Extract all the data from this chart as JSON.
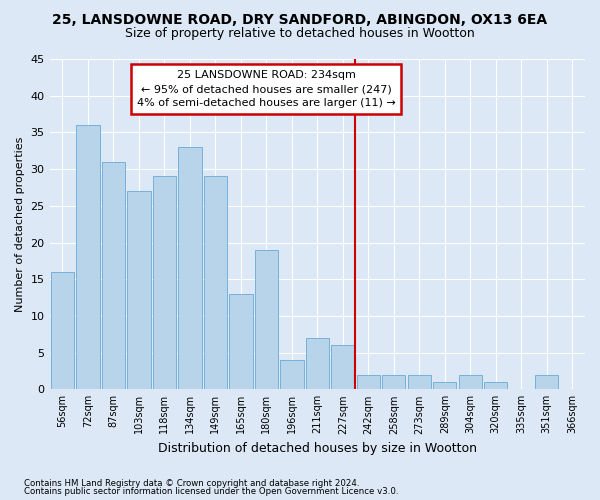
{
  "title1": "25, LANSDOWNE ROAD, DRY SANDFORD, ABINGDON, OX13 6EA",
  "title2": "Size of property relative to detached houses in Wootton",
  "xlabel": "Distribution of detached houses by size in Wootton",
  "ylabel": "Number of detached properties",
  "footer1": "Contains HM Land Registry data © Crown copyright and database right 2024.",
  "footer2": "Contains public sector information licensed under the Open Government Licence v3.0.",
  "categories": [
    "56sqm",
    "72sqm",
    "87sqm",
    "103sqm",
    "118sqm",
    "134sqm",
    "149sqm",
    "165sqm",
    "180sqm",
    "196sqm",
    "211sqm",
    "227sqm",
    "242sqm",
    "258sqm",
    "273sqm",
    "289sqm",
    "304sqm",
    "320sqm",
    "335sqm",
    "351sqm",
    "366sqm"
  ],
  "values": [
    16,
    36,
    31,
    27,
    29,
    33,
    29,
    13,
    19,
    4,
    7,
    6,
    2,
    2,
    2,
    1,
    2,
    1,
    0,
    2,
    0
  ],
  "bar_color": "#b8d4ea",
  "bar_edge_color": "#6aaad4",
  "annotation_line_label": "25 LANSDOWNE ROAD: 234sqm",
  "annotation_text1": "← 95% of detached houses are smaller (247)",
  "annotation_text2": "4% of semi-detached houses are larger (11) →",
  "annotation_box_color": "#ffffff",
  "annotation_border_color": "#cc0000",
  "vline_color": "#cc0000",
  "vline_x_index": 11.87,
  "ylim": [
    0,
    45
  ],
  "yticks": [
    0,
    5,
    10,
    15,
    20,
    25,
    30,
    35,
    40,
    45
  ],
  "bg_color": "#dce8f5",
  "grid_color": "#ffffff",
  "title1_fontsize": 10,
  "title2_fontsize": 9
}
